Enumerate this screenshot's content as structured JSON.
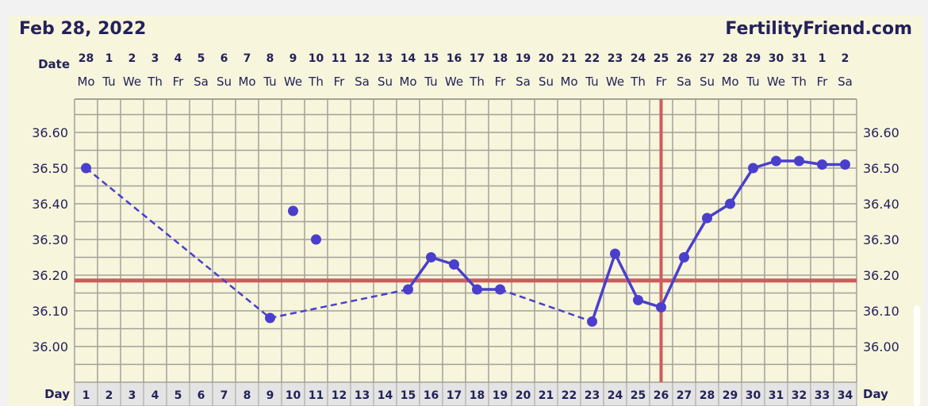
{
  "header": {
    "date": "Feb 28, 2022",
    "brand": "FertilityFriend.com"
  },
  "chart_data": {
    "type": "line",
    "title": "",
    "row_labels": {
      "date": "Date",
      "day": "Day"
    },
    "dates": [
      "28",
      "1",
      "2",
      "3",
      "4",
      "5",
      "6",
      "7",
      "8",
      "9",
      "10",
      "11",
      "12",
      "13",
      "14",
      "15",
      "16",
      "17",
      "18",
      "19",
      "20",
      "21",
      "22",
      "23",
      "24",
      "25",
      "26",
      "27",
      "28",
      "29",
      "30",
      "31",
      "1",
      "2"
    ],
    "weekdays": [
      "Mo",
      "Tu",
      "We",
      "Th",
      "Fr",
      "Sa",
      "Su",
      "Mo",
      "Tu",
      "We",
      "Th",
      "Fr",
      "Sa",
      "Su",
      "Mo",
      "Tu",
      "We",
      "Th",
      "Fr",
      "Sa",
      "Su",
      "Mo",
      "Tu",
      "We",
      "Th",
      "Fr",
      "Sa",
      "Su",
      "Mo",
      "Tu",
      "We",
      "Th",
      "Fr",
      "Sa"
    ],
    "days": [
      1,
      2,
      3,
      4,
      5,
      6,
      7,
      8,
      9,
      10,
      11,
      12,
      13,
      14,
      15,
      16,
      17,
      18,
      19,
      20,
      21,
      22,
      23,
      24,
      25,
      26,
      27,
      28,
      29,
      30,
      31,
      32,
      33,
      34
    ],
    "y_ticks": [
      "36.60",
      "36.50",
      "36.40",
      "36.30",
      "36.20",
      "36.10",
      "36.00"
    ],
    "ylim": [
      35.9,
      36.69
    ],
    "grid": true,
    "series": [
      {
        "points": [
          {
            "day": 1,
            "temp": 36.5
          },
          {
            "day": 9,
            "temp": 36.08
          },
          {
            "day": 10,
            "temp": 36.38
          },
          {
            "day": 11,
            "temp": 36.3
          },
          {
            "day": 15,
            "temp": 36.16
          },
          {
            "day": 16,
            "temp": 36.25
          },
          {
            "day": 17,
            "temp": 36.23
          },
          {
            "day": 18,
            "temp": 36.16
          },
          {
            "day": 19,
            "temp": 36.16
          },
          {
            "day": 23,
            "temp": 36.07
          },
          {
            "day": 24,
            "temp": 36.26
          },
          {
            "day": 25,
            "temp": 36.13
          },
          {
            "day": 26,
            "temp": 36.11
          },
          {
            "day": 27,
            "temp": 36.25
          },
          {
            "day": 28,
            "temp": 36.36
          },
          {
            "day": 29,
            "temp": 36.4
          },
          {
            "day": 30,
            "temp": 36.5
          },
          {
            "day": 31,
            "temp": 36.52
          },
          {
            "day": 32,
            "temp": 36.52
          },
          {
            "day": 33,
            "temp": 36.51
          },
          {
            "day": 34,
            "temp": 36.51
          }
        ],
        "connections": [
          {
            "from": 1,
            "to": 9,
            "style": "dashed"
          },
          {
            "from": 9,
            "to": 15,
            "style": "dashed"
          },
          {
            "from": 15,
            "to": 16,
            "style": "solid"
          },
          {
            "from": 16,
            "to": 17,
            "style": "solid"
          },
          {
            "from": 17,
            "to": 18,
            "style": "solid"
          },
          {
            "from": 18,
            "to": 19,
            "style": "solid"
          },
          {
            "from": 19,
            "to": 23,
            "style": "dashed"
          },
          {
            "from": 23,
            "to": 24,
            "style": "solid"
          },
          {
            "from": 24,
            "to": 25,
            "style": "solid"
          },
          {
            "from": 25,
            "to": 26,
            "style": "solid"
          },
          {
            "from": 26,
            "to": 27,
            "style": "solid"
          },
          {
            "from": 27,
            "to": 28,
            "style": "solid"
          },
          {
            "from": 28,
            "to": 29,
            "style": "solid"
          },
          {
            "from": 29,
            "to": 30,
            "style": "solid"
          },
          {
            "from": 30,
            "to": 31,
            "style": "solid"
          },
          {
            "from": 31,
            "to": 32,
            "style": "solid"
          },
          {
            "from": 32,
            "to": 33,
            "style": "solid"
          },
          {
            "from": 33,
            "to": 34,
            "style": "solid"
          }
        ],
        "color": "#4a3fcc"
      }
    ],
    "coverline_temp": 36.185,
    "ovulation_day": 26,
    "colors": {
      "marker_line": "#cd5c5c",
      "grid": "#a3a19a",
      "text": "#24215a",
      "background": "#f7f5dc",
      "day_cell": "#e4e4e4"
    }
  }
}
